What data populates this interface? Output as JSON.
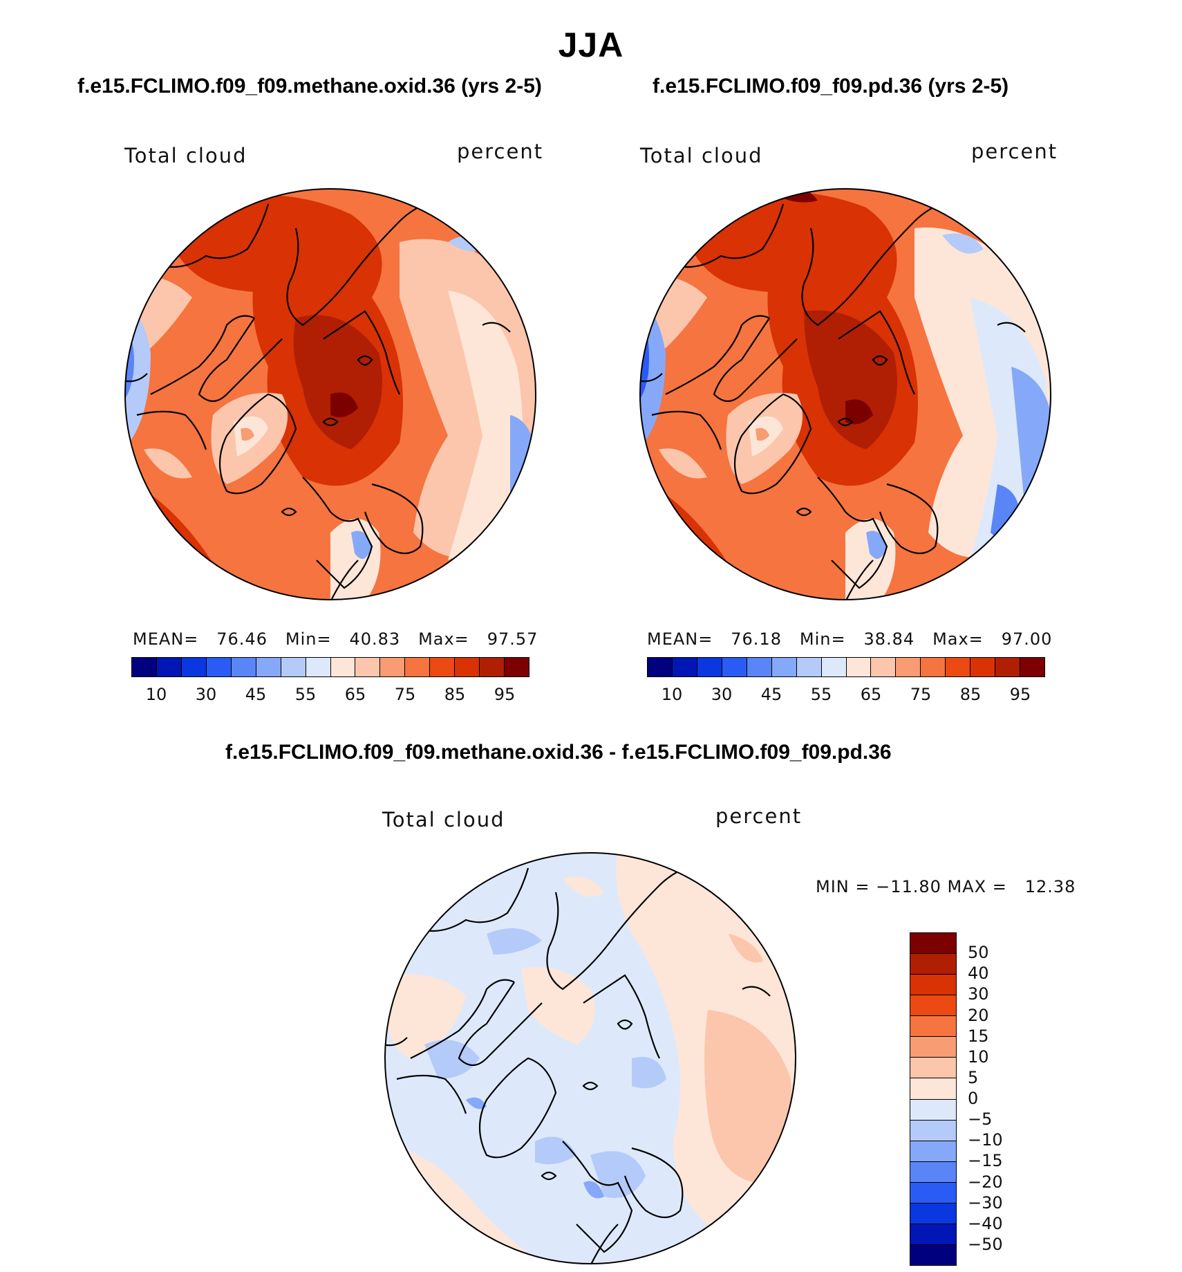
{
  "figure": {
    "title": "JJA"
  },
  "panels": [
    {
      "title": "f.e15.FCLIMO.f09_f09.methane.oxid.36 (yrs 2-5)",
      "variable": "Total cloud",
      "units": "percent",
      "stats": {
        "mean_label": "MEAN=",
        "mean": "76.46",
        "min_label": "Min=",
        "min": "40.83",
        "max_label": "Max=",
        "max": "97.57"
      }
    },
    {
      "title": "f.e15.FCLIMO.f09_f09.pd.36 (yrs 2-5)",
      "variable": "Total cloud",
      "units": "percent",
      "stats": {
        "mean_label": "MEAN=",
        "mean": "76.18",
        "min_label": "Min=",
        "min": "38.84",
        "max_label": "Max=",
        "max": "97.00"
      }
    },
    {
      "title": "f.e15.FCLIMO.f09_f09.methane.oxid.36 - f.e15.FCLIMO.f09_f09.pd.36",
      "variable": "Total cloud",
      "units": "percent",
      "minmax_text": "MIN = −11.80 MAX =   12.38"
    }
  ],
  "colorbar_abs": {
    "labels": [
      "10",
      "30",
      "45",
      "55",
      "65",
      "75",
      "85",
      "95"
    ],
    "colors": [
      "#00007f",
      "#0016b5",
      "#0a37e0",
      "#2a5cf5",
      "#5a85f7",
      "#86a8f8",
      "#b4caf9",
      "#dde9fb",
      "#fde6d8",
      "#fcc6ac",
      "#f89c74",
      "#f5743f",
      "#ec4a12",
      "#d93205",
      "#b01f04",
      "#7d0000"
    ]
  },
  "colorbar_diff": {
    "labels": [
      "50",
      "40",
      "30",
      "20",
      "15",
      "10",
      "5",
      "0",
      "−5",
      "−10",
      "−15",
      "−20",
      "−30",
      "−40",
      "−50"
    ],
    "colors": [
      "#7d0000",
      "#b01f04",
      "#d93205",
      "#ec4a12",
      "#f5743f",
      "#f89c74",
      "#fcc6ac",
      "#fde6d8",
      "#dde9fb",
      "#b4caf9",
      "#86a8f8",
      "#5a85f7",
      "#2a5cf5",
      "#0a37e0",
      "#0016b5",
      "#00007f"
    ]
  }
}
